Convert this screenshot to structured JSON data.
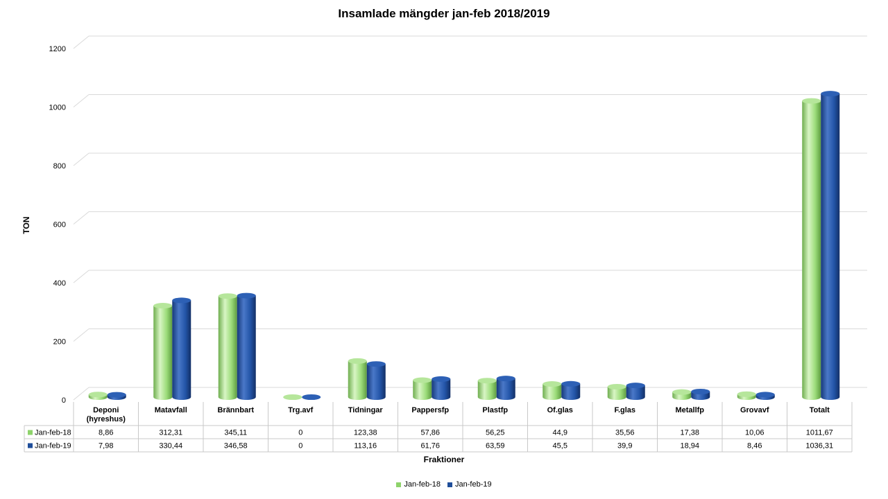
{
  "chart_data": {
    "type": "bar",
    "title": "Insamlade mängder jan-feb 2018/2019",
    "xlabel": "Fraktioner",
    "ylabel": "TON",
    "ylim": [
      0,
      1200
    ],
    "yticks": [
      "0",
      "200",
      "400",
      "600",
      "800",
      "1000",
      "1200"
    ],
    "grid": true,
    "legend_position": "bottom",
    "categories": [
      "Deponi (hyreshus)",
      "Matavfall",
      "Brännbart",
      "Trg.avf",
      "Tidningar",
      "Pappersfp",
      "Plastfp",
      "Of.glas",
      "F.glas",
      "Metallfp",
      "Grovavf",
      "Totalt"
    ],
    "series": [
      {
        "name": "Jan-feb-18",
        "color": "#8ed36b",
        "values": [
          8.86,
          312.31,
          345.11,
          0,
          123.38,
          57.86,
          56.25,
          44.9,
          35.56,
          17.38,
          10.06,
          1011.67
        ],
        "labels": [
          "8,86",
          "312,31",
          "345,11",
          "0",
          "123,38",
          "57,86",
          "56,25",
          "44,9",
          "35,56",
          "17,38",
          "10,06",
          "1011,67"
        ]
      },
      {
        "name": "Jan-feb-19",
        "color": "#1f4e9a",
        "values": [
          7.98,
          330.44,
          346.58,
          0,
          113.16,
          61.76,
          63.59,
          45.5,
          39.9,
          18.94,
          8.46,
          1036.31
        ],
        "labels": [
          "7,98",
          "330,44",
          "346,58",
          "0",
          "113,16",
          "61,76",
          "63,59",
          "45,5",
          "39,9",
          "18,94",
          "8,46",
          "1036,31"
        ]
      }
    ]
  }
}
